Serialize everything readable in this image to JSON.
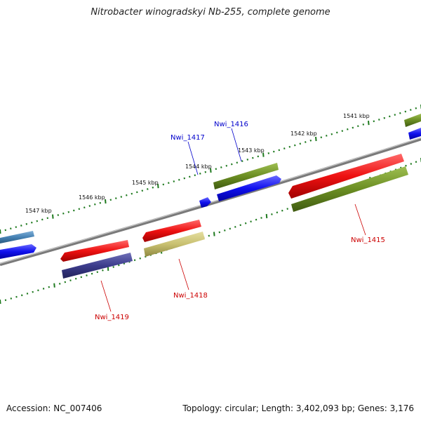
{
  "title": "Nitrobacter winogradskyi Nb-255, complete genome",
  "footer": {
    "accession": "Accession: NC_007406",
    "summary": "Topology: circular; Length: 3,402,093 bp; Genes: 3,176"
  },
  "colors": {
    "background": "#ffffff",
    "backbone": "#808080",
    "tick": "#1f7a1f",
    "forward_label": "#0000cc",
    "reverse_label": "#cc0000",
    "red_feature": "#ee1111",
    "blue_feature": "#1010ee",
    "olive_feature": "#6b8e23",
    "khaki_feature": "#c8c070",
    "navy_feature": "#3c3c8c",
    "steel_feature": "#4682b4"
  },
  "kbp_labels": [
    "1541 kbp",
    "1542 kbp",
    "1543 kbp",
    "1544 kbp",
    "1545 kbp",
    "1546 kbp",
    "1547 kbp"
  ],
  "gene_labels": {
    "forward": [
      "Nwi_1416",
      "Nwi_1417"
    ],
    "reverse": [
      "Nwi_1415",
      "Nwi_1418",
      "Nwi_1419"
    ]
  }
}
